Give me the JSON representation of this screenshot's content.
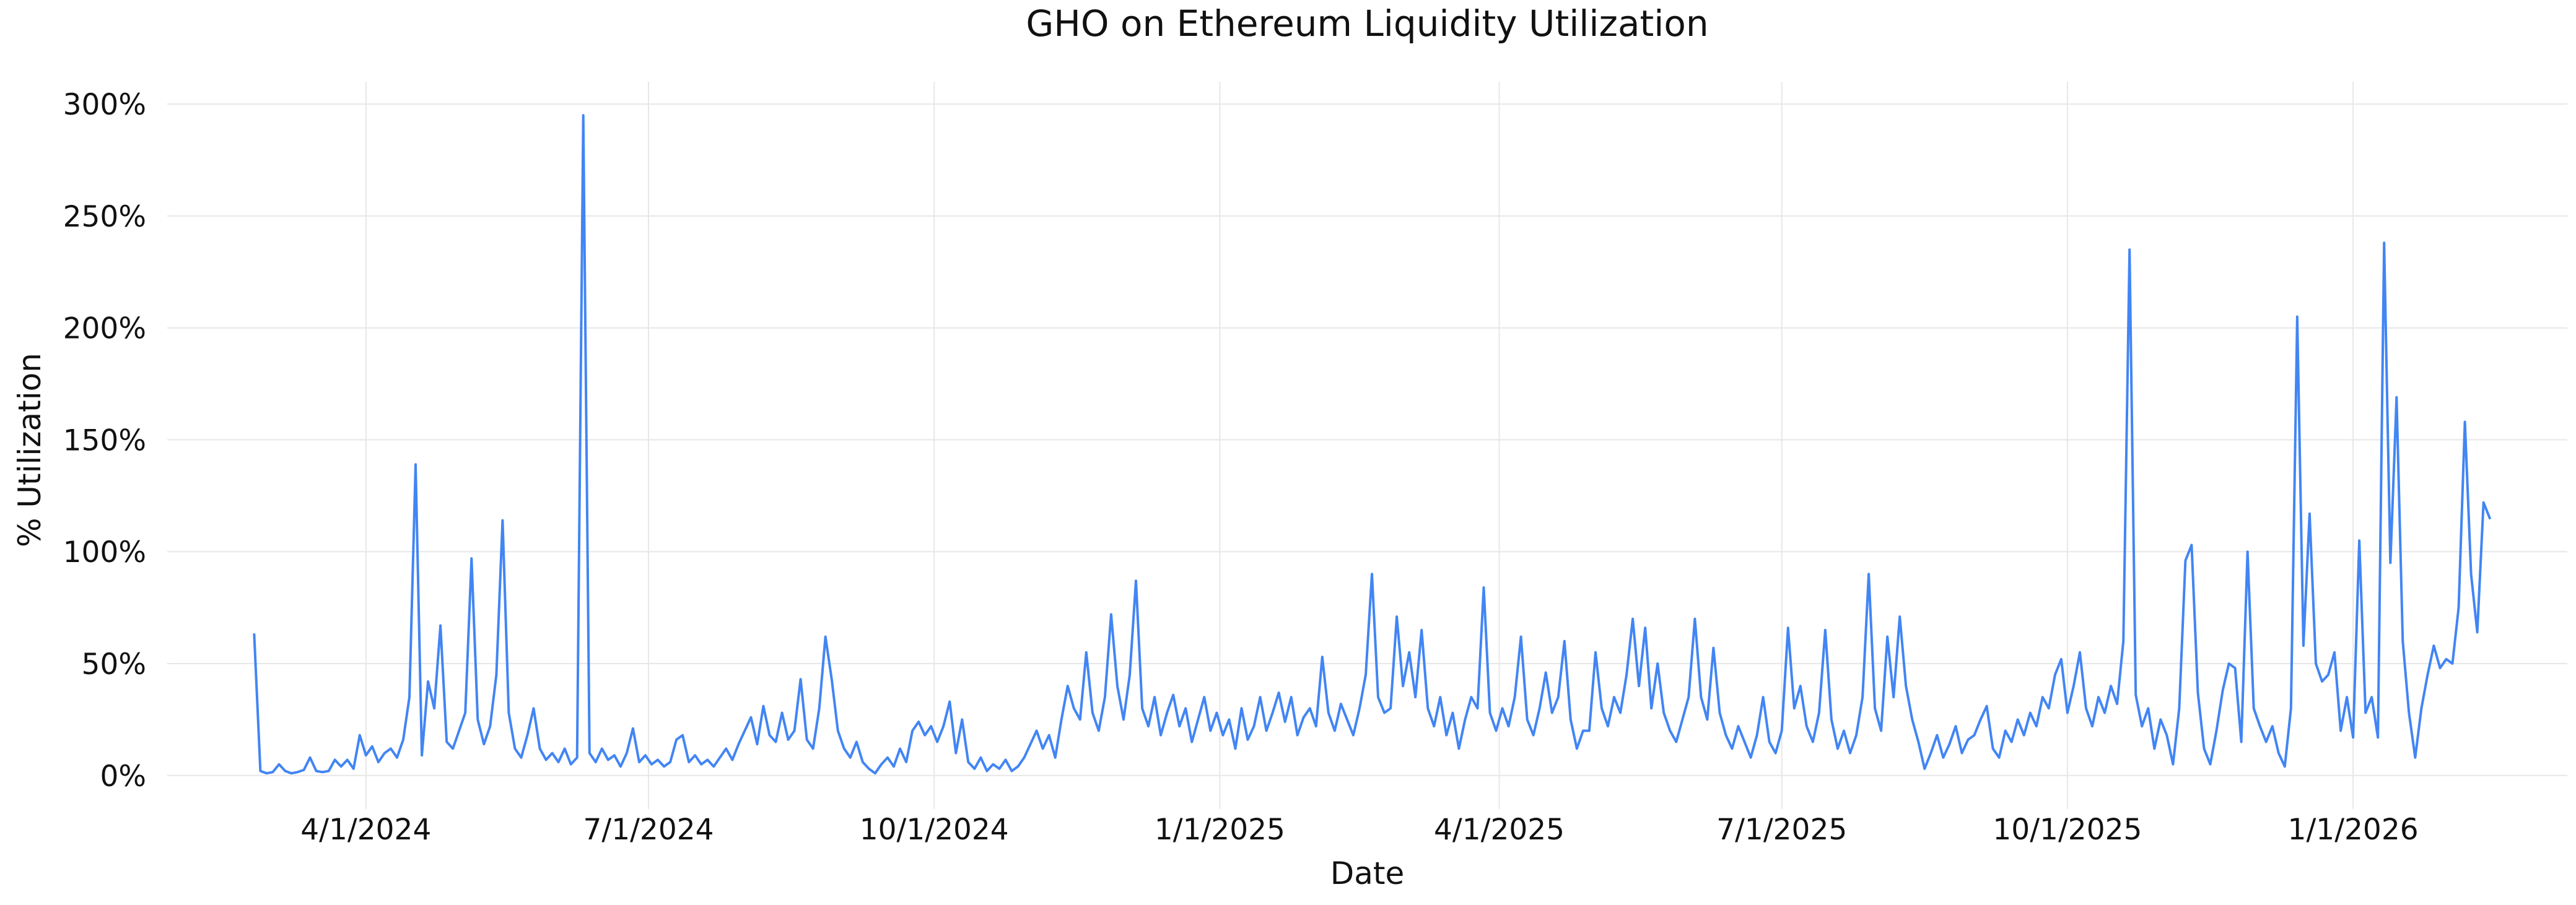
{
  "chart_data": {
    "type": "line",
    "title": "GHO on Ethereum Liquidity Utilization",
    "xlabel": "Date",
    "ylabel": "% Utilization",
    "legend_position": "none",
    "grid": true,
    "background_color": "#ffffff",
    "grid_color": "#e7e7e7",
    "text_color": "#111111",
    "line_color": "#4285f4",
    "line_width": 4,
    "ylim": [
      -15,
      310
    ],
    "x_domain": [
      "2024-01-28",
      "2026-03-11"
    ],
    "y_ticks": [
      {
        "value": 0,
        "label": "0%"
      },
      {
        "value": 50,
        "label": "50%"
      },
      {
        "value": 100,
        "label": "100%"
      },
      {
        "value": 150,
        "label": "150%"
      },
      {
        "value": 200,
        "label": "200%"
      },
      {
        "value": 250,
        "label": "250%"
      },
      {
        "value": 300,
        "label": "300%"
      }
    ],
    "x_ticks": [
      {
        "date": "2024-04-01",
        "label": "4/1/2024"
      },
      {
        "date": "2024-07-01",
        "label": "7/1/2024"
      },
      {
        "date": "2024-10-01",
        "label": "10/1/2024"
      },
      {
        "date": "2025-01-01",
        "label": "1/1/2025"
      },
      {
        "date": "2025-04-01",
        "label": "4/1/2025"
      },
      {
        "date": "2025-07-01",
        "label": "7/1/2025"
      },
      {
        "date": "2025-10-01",
        "label": "10/1/2025"
      },
      {
        "date": "2026-01-01",
        "label": "1/1/2026"
      }
    ],
    "series": [
      {
        "name": "GHO on Ethereum liquidity utilization",
        "unit": "percent",
        "start_date": "2024-02-25",
        "step_days": 2,
        "values": [
          63,
          2,
          1,
          1.5,
          5,
          2,
          1,
          1.5,
          2.5,
          8,
          2,
          1.5,
          2,
          7,
          4,
          7,
          3,
          18,
          9,
          13,
          6,
          10,
          12,
          8,
          16,
          35,
          139,
          9,
          42,
          30,
          67,
          15,
          12,
          20,
          28,
          97,
          25,
          14,
          22,
          45,
          114,
          28,
          12,
          8,
          18,
          30,
          12,
          7,
          10,
          6,
          12,
          5,
          8,
          295,
          10,
          6,
          12,
          7,
          9,
          4,
          10,
          21,
          6,
          9,
          5,
          7,
          4,
          6,
          16,
          18,
          6,
          9,
          5,
          7,
          4,
          8,
          12,
          7,
          14,
          20,
          26,
          14,
          31,
          18,
          15,
          28,
          16,
          20,
          43,
          16,
          12,
          30,
          62,
          43,
          20,
          12,
          8,
          15,
          6,
          3,
          1,
          5,
          8,
          4,
          12,
          6,
          20,
          24,
          18,
          22,
          15,
          22,
          33,
          10,
          25,
          6,
          3,
          8,
          2,
          5,
          3,
          7,
          2,
          4,
          8,
          14,
          20,
          12,
          18,
          8,
          25,
          40,
          30,
          25,
          55,
          28,
          20,
          35,
          72,
          40,
          25,
          45,
          87,
          30,
          22,
          35,
          18,
          28,
          36,
          22,
          30,
          15,
          25,
          35,
          20,
          28,
          18,
          25,
          12,
          30,
          16,
          22,
          35,
          20,
          28,
          37,
          24,
          35,
          18,
          26,
          30,
          22,
          53,
          28,
          20,
          32,
          25,
          18,
          30,
          45,
          90,
          35,
          28,
          30,
          71,
          40,
          55,
          35,
          65,
          30,
          22,
          35,
          18,
          28,
          12,
          25,
          35,
          30,
          84,
          28,
          20,
          30,
          22,
          35,
          62,
          25,
          18,
          30,
          46,
          28,
          35,
          60,
          25,
          12,
          20,
          20,
          55,
          30,
          22,
          35,
          28,
          45,
          70,
          40,
          66,
          30,
          50,
          28,
          20,
          15,
          25,
          35,
          70,
          35,
          25,
          57,
          28,
          18,
          12,
          22,
          15,
          8,
          18,
          35,
          15,
          10,
          20,
          66,
          30,
          40,
          22,
          15,
          28,
          65,
          25,
          12,
          20,
          10,
          18,
          35,
          90,
          30,
          20,
          62,
          35,
          71,
          40,
          25,
          15,
          3,
          10,
          18,
          8,
          14,
          22,
          10,
          16,
          18,
          25,
          31,
          12,
          8,
          20,
          15,
          25,
          18,
          28,
          22,
          35,
          30,
          45,
          52,
          28,
          40,
          55,
          30,
          22,
          35,
          28,
          40,
          32,
          60,
          235,
          36,
          22,
          30,
          12,
          25,
          18,
          5,
          30,
          96,
          103,
          37,
          12,
          5,
          20,
          38,
          50,
          48,
          15,
          100,
          30,
          22,
          15,
          22,
          10,
          4,
          30,
          205,
          58,
          117,
          50,
          42,
          45,
          55,
          20,
          35,
          17,
          105,
          28,
          35,
          17,
          238,
          95,
          169,
          60,
          28,
          8,
          30,
          45,
          58,
          48,
          52,
          50,
          75,
          158,
          90,
          64,
          122,
          115
        ]
      }
    ]
  }
}
